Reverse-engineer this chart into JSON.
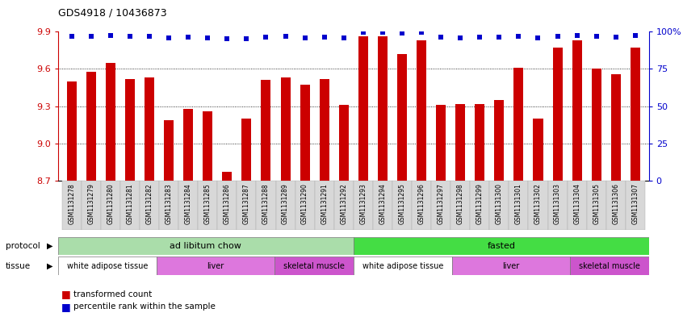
{
  "title": "GDS4918 / 10436873",
  "samples": [
    "GSM1131278",
    "GSM1131279",
    "GSM1131280",
    "GSM1131281",
    "GSM1131282",
    "GSM1131283",
    "GSM1131284",
    "GSM1131285",
    "GSM1131286",
    "GSM1131287",
    "GSM1131288",
    "GSM1131289",
    "GSM1131290",
    "GSM1131291",
    "GSM1131292",
    "GSM1131293",
    "GSM1131294",
    "GSM1131295",
    "GSM1131296",
    "GSM1131297",
    "GSM1131298",
    "GSM1131299",
    "GSM1131300",
    "GSM1131301",
    "GSM1131302",
    "GSM1131303",
    "GSM1131304",
    "GSM1131305",
    "GSM1131306",
    "GSM1131307"
  ],
  "bar_values": [
    9.5,
    9.58,
    9.65,
    9.52,
    9.53,
    9.19,
    9.28,
    9.26,
    8.77,
    9.2,
    9.51,
    9.53,
    9.47,
    9.52,
    9.31,
    9.86,
    9.86,
    9.72,
    9.83,
    9.31,
    9.32,
    9.32,
    9.35,
    9.61,
    9.2,
    9.77,
    9.83,
    9.6,
    9.56,
    9.77
  ],
  "percentile_values": [
    97,
    97,
    97.5,
    97,
    97,
    96,
    96.5,
    96,
    95.5,
    95.5,
    96.5,
    97,
    96,
    96.5,
    96,
    99.5,
    99.5,
    99,
    99.5,
    96.5,
    96,
    96.5,
    96.5,
    97,
    96,
    97,
    97.5,
    97,
    96.5,
    97.5
  ],
  "ylim_left": [
    8.7,
    9.9
  ],
  "ylim_right": [
    0,
    100
  ],
  "yticks_left": [
    8.7,
    9.0,
    9.3,
    9.6,
    9.9
  ],
  "yticks_right": [
    0,
    25,
    50,
    75,
    100
  ],
  "bar_color": "#cc0000",
  "dot_color": "#0000cc",
  "bg_color": "#ffffff",
  "axis_bg": "#f0f0f0",
  "protocol_groups": [
    {
      "label": "ad libitum chow",
      "start": 0,
      "end": 15,
      "color": "#aaddaa"
    },
    {
      "label": "fasted",
      "start": 15,
      "end": 30,
      "color": "#44dd44"
    }
  ],
  "tissue_groups": [
    {
      "label": "white adipose tissue",
      "start": 0,
      "end": 5,
      "color": "#ffffff"
    },
    {
      "label": "liver",
      "start": 5,
      "end": 11,
      "color": "#dd77dd"
    },
    {
      "label": "skeletal muscle",
      "start": 11,
      "end": 15,
      "color": "#cc55cc"
    },
    {
      "label": "white adipose tissue",
      "start": 15,
      "end": 20,
      "color": "#ffffff"
    },
    {
      "label": "liver",
      "start": 20,
      "end": 26,
      "color": "#dd77dd"
    },
    {
      "label": "skeletal muscle",
      "start": 26,
      "end": 30,
      "color": "#cc55cc"
    }
  ],
  "legend_items": [
    {
      "label": "transformed count",
      "color": "#cc0000"
    },
    {
      "label": "percentile rank within the sample",
      "color": "#0000cc"
    }
  ]
}
